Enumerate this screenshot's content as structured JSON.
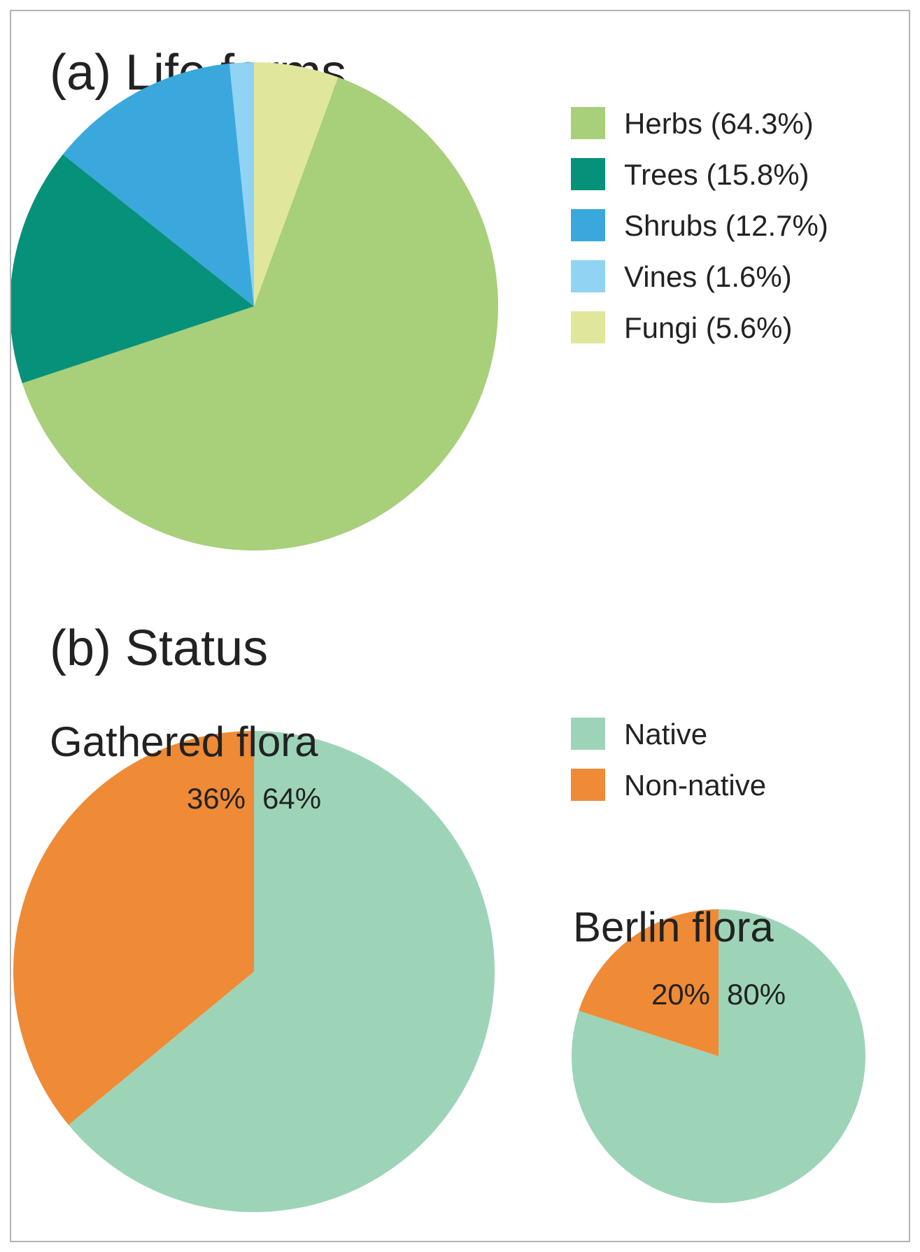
{
  "chart_data": [
    {
      "type": "pie",
      "title": "(a) Life forms",
      "series": [
        {
          "name": "Herbs",
          "value": 64.3,
          "legend": "Herbs (64.3%)",
          "color": "#a8cf7a"
        },
        {
          "name": "Trees",
          "value": 15.8,
          "legend": "Trees (15.8%)",
          "color": "#06917a"
        },
        {
          "name": "Shrubs",
          "value": 12.7,
          "legend": "Shrubs (12.7%)",
          "color": "#3aa8dc"
        },
        {
          "name": "Vines",
          "value": 1.6,
          "legend": "Vines (1.6%)",
          "color": "#91d3f3"
        },
        {
          "name": "Fungi",
          "value": 5.6,
          "legend": "Fungi (5.6%)",
          "color": "#e0e79d"
        }
      ],
      "legend_position": "right"
    },
    {
      "type": "pie",
      "title": "(b) Status",
      "legend": [
        {
          "name": "Native",
          "color": "#9dd4b8"
        },
        {
          "name": "Non-native",
          "color": "#ef8a36"
        }
      ],
      "legend_position": "top-right",
      "pies": [
        {
          "name": "Gathered flora",
          "values": [
            {
              "category": "Native",
              "value": 64,
              "label": "64%"
            },
            {
              "category": "Non-native",
              "value": 36,
              "label": "36%"
            }
          ]
        },
        {
          "name": "Berlin flora",
          "values": [
            {
              "category": "Native",
              "value": 80,
              "label": "80%"
            },
            {
              "category": "Non-native",
              "value": 20,
              "label": "20%"
            }
          ]
        }
      ]
    }
  ]
}
